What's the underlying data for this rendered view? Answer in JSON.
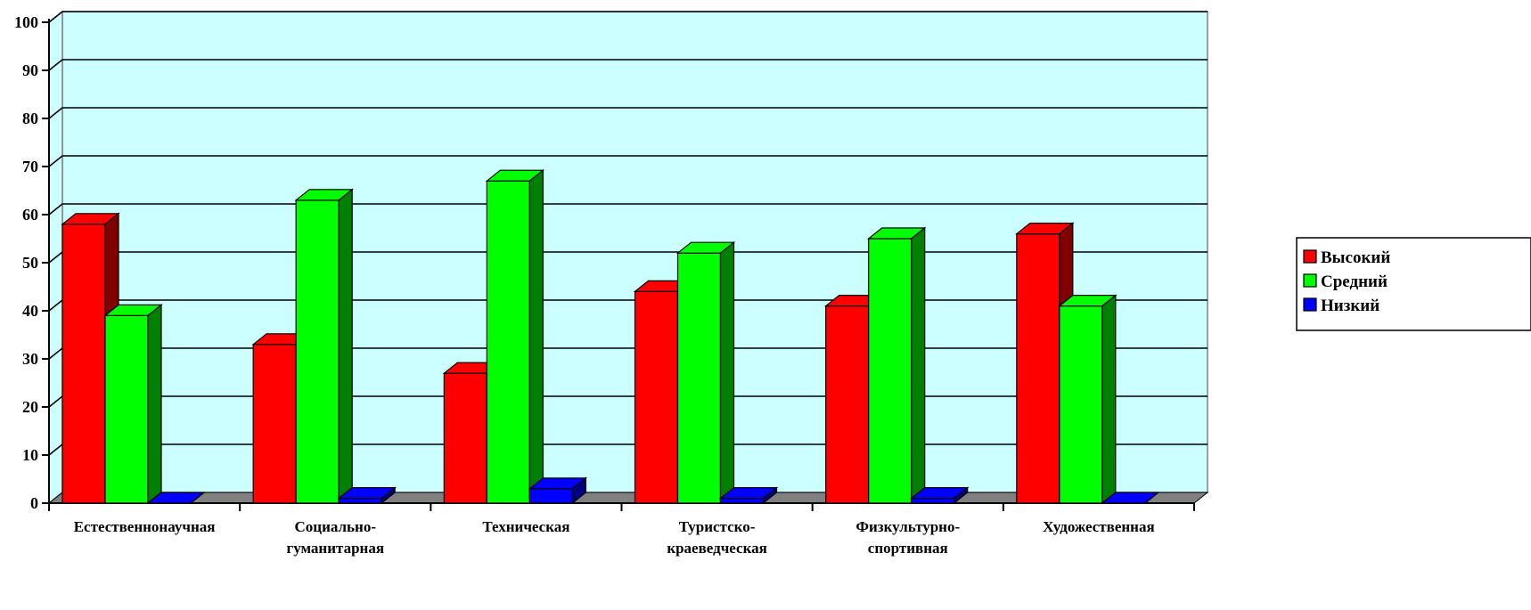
{
  "chart_data": {
    "type": "bar",
    "title": "",
    "xlabel": "",
    "ylabel": "",
    "ylim": [
      0,
      100
    ],
    "yticks": [
      0,
      10,
      20,
      30,
      40,
      50,
      60,
      70,
      80,
      90,
      100
    ],
    "grid": true,
    "legend_position": "right",
    "categories": [
      [
        "Естественнонаучная"
      ],
      [
        "Социально-",
        "гуманитарная"
      ],
      [
        "Техническая"
      ],
      [
        "Туристско-",
        "краеведческая"
      ],
      [
        "Физкультурно-",
        "спортивная"
      ],
      [
        "Художественная"
      ]
    ],
    "series": [
      {
        "name": "Высокий",
        "color": "#ff0000",
        "side_color": "#800000",
        "values": [
          58,
          33,
          27,
          44,
          41,
          56
        ]
      },
      {
        "name": "Средний",
        "color": "#00ff00",
        "side_color": "#008000",
        "values": [
          39,
          63,
          67,
          52,
          55,
          41
        ]
      },
      {
        "name": "Низкий",
        "color": "#0000ff",
        "side_color": "#000080",
        "values": [
          0,
          1,
          3,
          1,
          1,
          0
        ]
      }
    ],
    "plot_background": "#ccffff",
    "floor_color": "#808080"
  }
}
